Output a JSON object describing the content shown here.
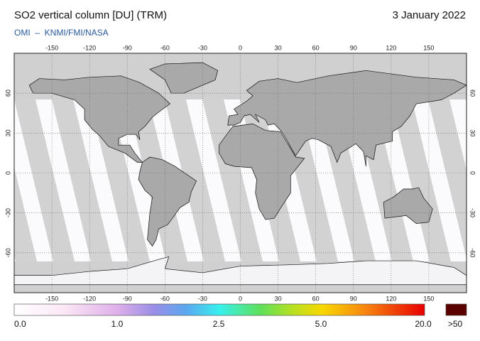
{
  "header": {
    "title": "SO2 vertical column [DU] (TRM)",
    "date": "3 January 2022",
    "source": "OMI  –  KNMI/FMI/NASA"
  },
  "map": {
    "lon_ticks": [
      -150,
      -120,
      -90,
      -60,
      -30,
      0,
      30,
      60,
      90,
      120,
      150
    ],
    "lat_ticks": [
      -60,
      -30,
      0,
      30,
      60
    ]
  },
  "colorbar": {
    "labels": [
      "0.0",
      "1.0",
      "2.5",
      "5.0",
      "20.0",
      ">50"
    ]
  }
}
